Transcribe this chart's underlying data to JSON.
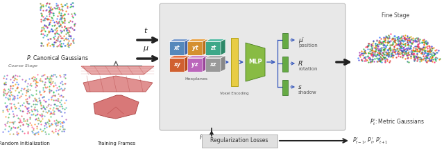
{
  "bg_color": "#ffffff",
  "fig_width": 6.4,
  "fig_height": 2.16,
  "hexplane_labels": [
    "xt",
    "yt",
    "zt",
    "xy",
    "yz",
    "xz"
  ],
  "hexplane_colors_top": [
    "#7799cc",
    "#e8a040",
    "#4db8a0",
    "#e87040",
    "#cc88cc",
    "#aaaaaa"
  ],
  "hexplane_colors_side": [
    "#4466aa",
    "#bb6e1a",
    "#2d8868",
    "#bb4a18",
    "#994499",
    "#888888"
  ],
  "hexplane_colors_front": [
    "#5588bb",
    "#d49030",
    "#3da888",
    "#d06030",
    "#bb66bb",
    "#999999"
  ],
  "green_bar_color": "#66aa44",
  "yellow_bar_color": "#e8cc44",
  "mlp_color": "#88bb44",
  "blue_arrow_color": "#3355bb",
  "dark_arrow_color": "#222222",
  "panel_color": "#e8e8e8",
  "output_labels_main": [
    "μ′",
    "R′",
    "s"
  ],
  "output_labels_sub": [
    "position",
    "rotation",
    "shadow"
  ]
}
